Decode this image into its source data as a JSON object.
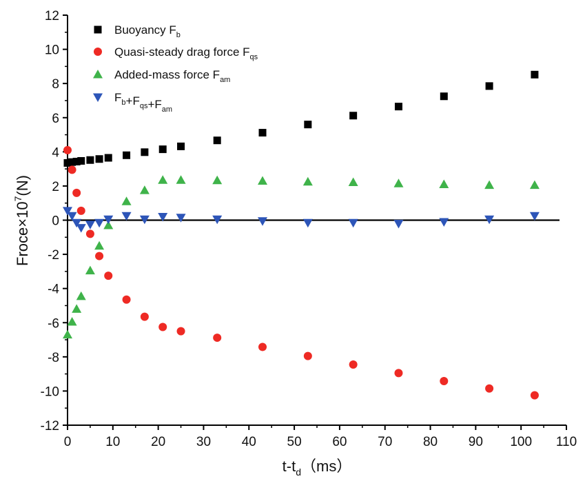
{
  "chart_data": {
    "type": "scatter",
    "xlabel": "t-t",
    "xlabel_sub": "d",
    "xlabel_unit": "（ms）",
    "ylabel": "Froce×10",
    "ylabel_sup": "7",
    "ylabel_unit": "(N)",
    "xlim": [
      0,
      110
    ],
    "ylim": [
      -12,
      12
    ],
    "xticks": [
      0,
      10,
      20,
      30,
      40,
      50,
      60,
      70,
      80,
      90,
      100,
      110
    ],
    "yticks": [
      -12,
      -10,
      -8,
      -6,
      -4,
      -2,
      0,
      2,
      4,
      6,
      8,
      10,
      12
    ],
    "zero_line": true,
    "legend_position": "top-left",
    "series": [
      {
        "name": "Buoyancy F",
        "name_sub": "b",
        "marker": "square",
        "color": "#000000",
        "points": [
          [
            0,
            3.35
          ],
          [
            1,
            3.4
          ],
          [
            2,
            3.43
          ],
          [
            3,
            3.47
          ],
          [
            5,
            3.52
          ],
          [
            7,
            3.58
          ],
          [
            9,
            3.65
          ],
          [
            13,
            3.8
          ],
          [
            17,
            3.98
          ],
          [
            21,
            4.15
          ],
          [
            25,
            4.32
          ],
          [
            33,
            4.67
          ],
          [
            43,
            5.12
          ],
          [
            53,
            5.6
          ],
          [
            63,
            6.12
          ],
          [
            73,
            6.65
          ],
          [
            83,
            7.25
          ],
          [
            93,
            7.85
          ],
          [
            103,
            8.52
          ]
        ]
      },
      {
        "name": "Quasi-steady drag force F",
        "name_sub": "qs",
        "marker": "circle",
        "color": "#ee2a24",
        "points": [
          [
            0,
            4.1
          ],
          [
            1,
            2.95
          ],
          [
            2,
            1.6
          ],
          [
            3,
            0.55
          ],
          [
            5,
            -0.8
          ],
          [
            7,
            -2.1
          ],
          [
            9,
            -3.25
          ],
          [
            13,
            -4.65
          ],
          [
            17,
            -5.65
          ],
          [
            21,
            -6.25
          ],
          [
            25,
            -6.5
          ],
          [
            33,
            -6.88
          ],
          [
            43,
            -7.42
          ],
          [
            53,
            -7.95
          ],
          [
            63,
            -8.45
          ],
          [
            73,
            -8.95
          ],
          [
            83,
            -9.42
          ],
          [
            93,
            -9.85
          ],
          [
            103,
            -10.25
          ]
        ]
      },
      {
        "name": "Added-mass force F",
        "name_sub": "am",
        "marker": "triangle-up",
        "color": "#3fb34a",
        "points": [
          [
            0,
            -6.7
          ],
          [
            1,
            -5.95
          ],
          [
            2,
            -5.2
          ],
          [
            3,
            -4.45
          ],
          [
            5,
            -2.95
          ],
          [
            7,
            -1.5
          ],
          [
            9,
            -0.3
          ],
          [
            13,
            1.1
          ],
          [
            17,
            1.75
          ],
          [
            21,
            2.35
          ],
          [
            25,
            2.35
          ],
          [
            33,
            2.33
          ],
          [
            43,
            2.3
          ],
          [
            53,
            2.25
          ],
          [
            63,
            2.22
          ],
          [
            73,
            2.15
          ],
          [
            83,
            2.1
          ],
          [
            93,
            2.05
          ],
          [
            103,
            2.05
          ]
        ]
      },
      {
        "name": "F",
        "name_parts": [
          {
            "t": "F",
            "sub": "b"
          },
          {
            "t": "+F",
            "sub": "qs"
          },
          {
            "t": "+F",
            "sub": "am"
          }
        ],
        "marker": "triangle-down",
        "color": "#2d55b8",
        "points": [
          [
            0,
            0.55
          ],
          [
            1,
            0.25
          ],
          [
            2,
            -0.15
          ],
          [
            3,
            -0.45
          ],
          [
            5,
            -0.25
          ],
          [
            7,
            -0.15
          ],
          [
            9,
            0.05
          ],
          [
            13,
            0.25
          ],
          [
            17,
            0.05
          ],
          [
            21,
            0.2
          ],
          [
            25,
            0.15
          ],
          [
            33,
            0.05
          ],
          [
            43,
            -0.05
          ],
          [
            53,
            -0.15
          ],
          [
            63,
            -0.15
          ],
          [
            73,
            -0.2
          ],
          [
            83,
            -0.1
          ],
          [
            93,
            0.05
          ],
          [
            103,
            0.25
          ]
        ]
      }
    ]
  }
}
